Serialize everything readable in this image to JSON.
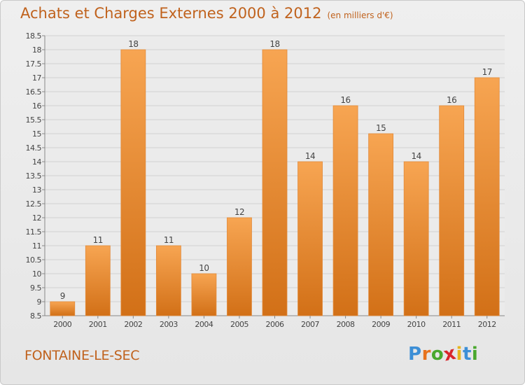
{
  "header": {
    "title": "Achats et Charges Externes 2000 à 2012",
    "unit": "(en milliers d'€)"
  },
  "footer": {
    "commune": "FONTAINE-LE-SEC",
    "brand": "Proxiti"
  },
  "brand_letters": [
    {
      "ch": "P",
      "color": "#3d8fd6"
    },
    {
      "ch": "r",
      "color": "#e8731d"
    },
    {
      "ch": "o",
      "color": "#4aa82e"
    },
    {
      "ch": "x",
      "color": "#d9262b"
    },
    {
      "ch": "i",
      "color": "#e8b51d"
    },
    {
      "ch": "t",
      "color": "#3d8fd6"
    },
    {
      "ch": "i",
      "color": "#4aa82e"
    }
  ],
  "colors": {
    "title": "#c0621d",
    "bar_light": "#f7a552",
    "bar_dark": "#d27017",
    "grid": "#d0d0d0"
  },
  "chart_data": {
    "type": "bar",
    "categories": [
      "2000",
      "2001",
      "2002",
      "2003",
      "2004",
      "2005",
      "2006",
      "2007",
      "2008",
      "2009",
      "2010",
      "2011",
      "2012"
    ],
    "values": [
      9,
      11,
      18,
      11,
      10,
      12,
      18,
      14,
      16,
      15,
      14,
      16,
      17
    ],
    "ylim": [
      8.5,
      18.5
    ],
    "yticks": [
      "8.5",
      "9",
      "9.5",
      "10",
      "10.5",
      "11",
      "11.5",
      "12",
      "12.5",
      "13",
      "13.5",
      "14",
      "14.5",
      "15",
      "15.5",
      "16",
      "16.5",
      "17",
      "17.5",
      "18",
      "18.5"
    ],
    "grid": true
  }
}
